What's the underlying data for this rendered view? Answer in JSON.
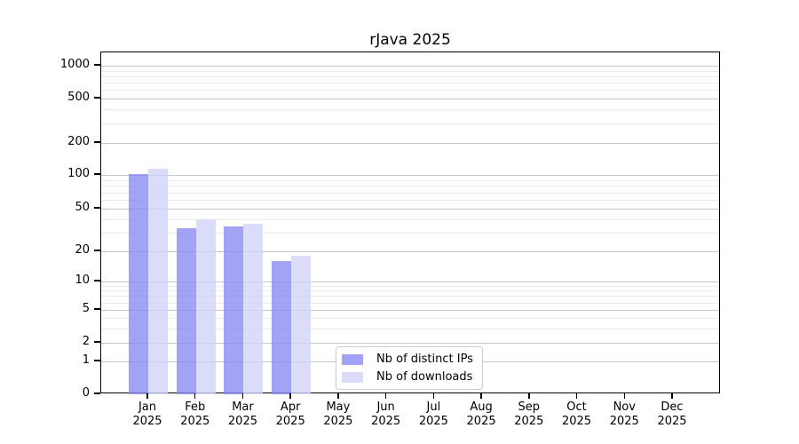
{
  "chart_data": {
    "type": "bar",
    "title": "rJava 2025",
    "categories": [
      "Jan",
      "Feb",
      "Mar",
      "Apr",
      "May",
      "Jun",
      "Jul",
      "Aug",
      "Sep",
      "Oct",
      "Nov",
      "Dec"
    ],
    "category_year": "2025",
    "series": [
      {
        "name": "Nb of distinct IPs",
        "color": "#8c8cf2",
        "values": [
          101,
          33,
          34,
          16,
          null,
          null,
          null,
          null,
          null,
          null,
          null,
          null
        ]
      },
      {
        "name": "Nb of downloads",
        "color": "#d2d2f9",
        "values": [
          114,
          40,
          36,
          18,
          null,
          null,
          null,
          null,
          null,
          null,
          null,
          null
        ]
      }
    ],
    "y_axis": {
      "scale": "log (zero pinned at baseline)",
      "ticks": [
        0,
        1,
        2,
        5,
        10,
        20,
        50,
        100,
        200,
        500,
        1000
      ],
      "minor_gridlines": [
        3,
        4,
        6,
        7,
        8,
        9,
        30,
        40,
        60,
        70,
        80,
        90,
        300,
        400,
        600,
        700,
        800,
        900
      ],
      "range": [
        0,
        1200
      ]
    },
    "grid": "horizontal major + minor, on",
    "legend_position": "inside, lower center",
    "colors": {
      "grid_major": "#c6c6c6",
      "grid_minor": "#eaeaea",
      "axis": "#000000",
      "background": "#ffffff"
    }
  }
}
